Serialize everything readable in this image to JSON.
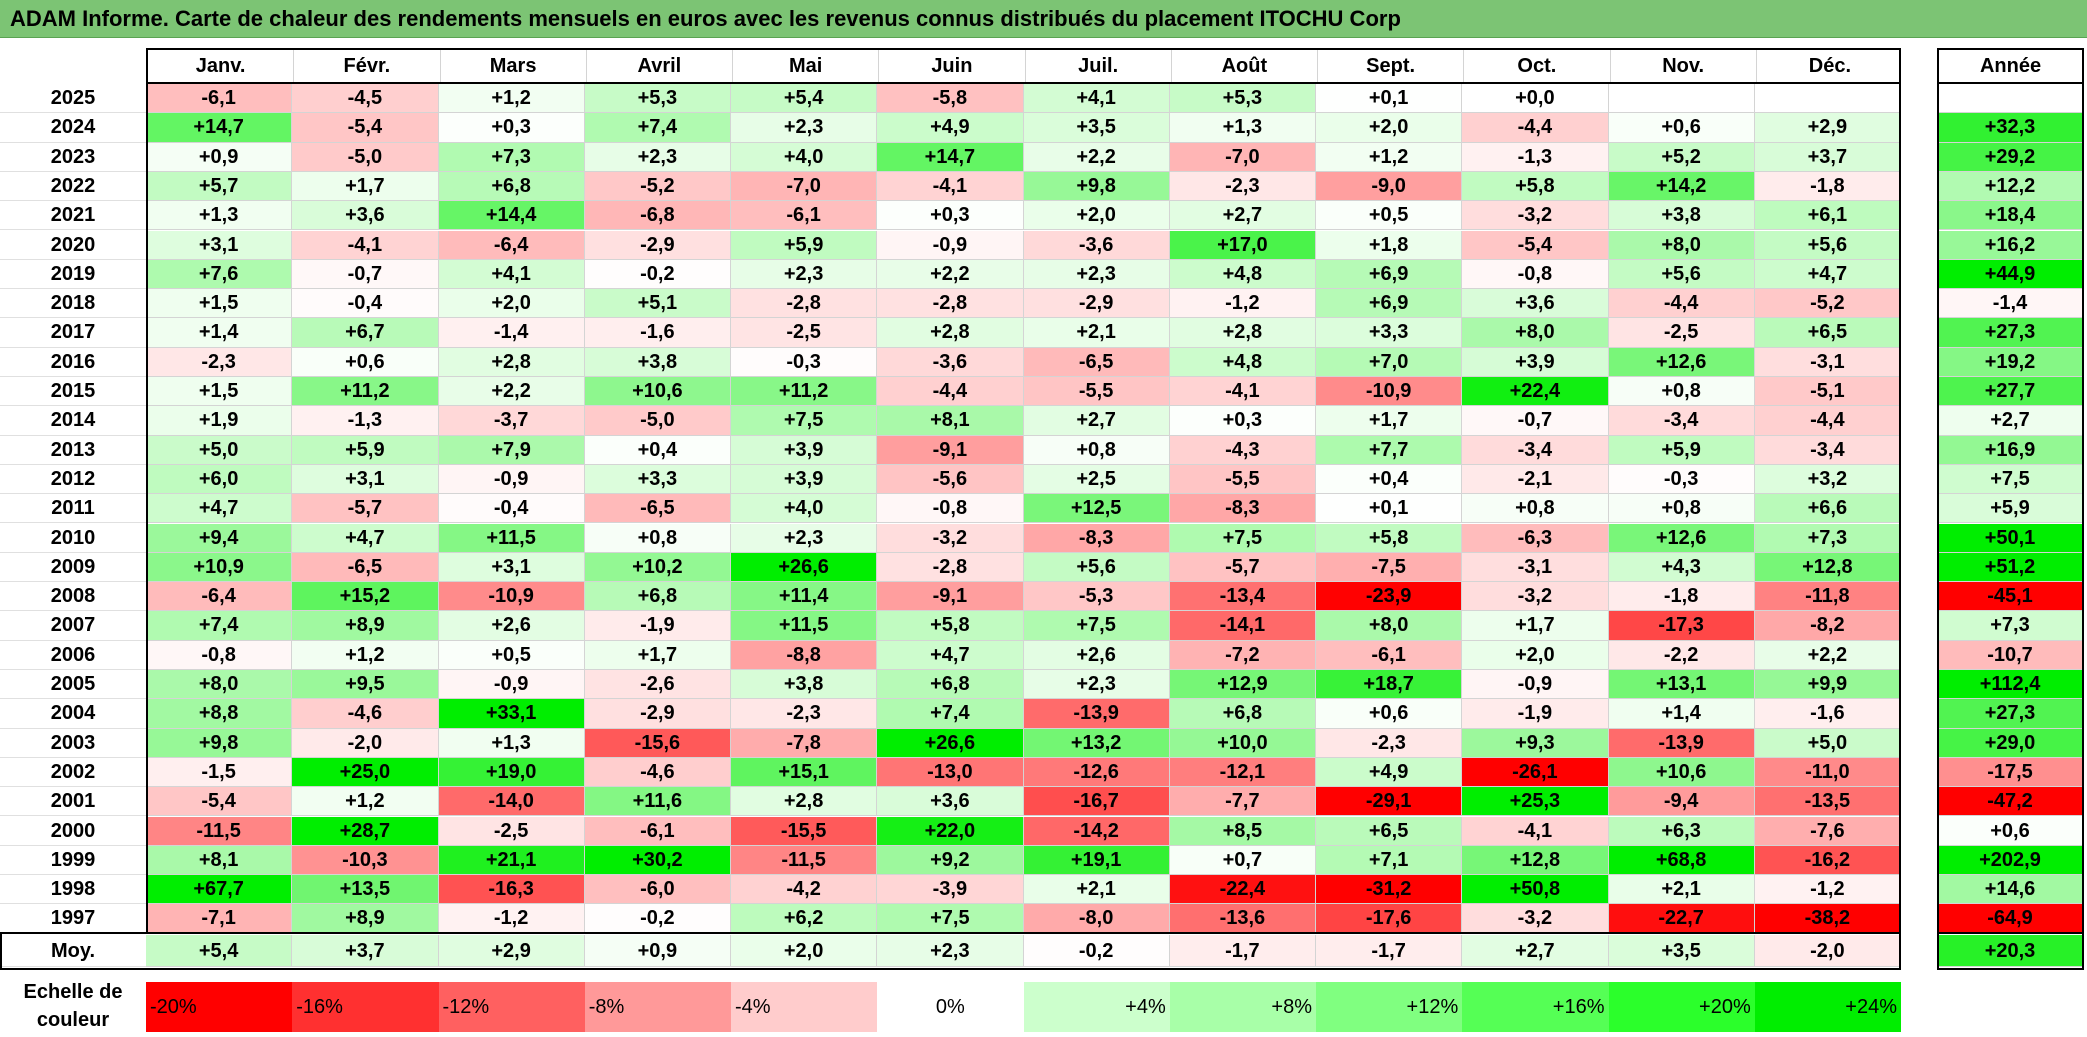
{
  "title": "ADAM Informe. Carte de chaleur des rendements mensuels en euros avec les revenus connus distribués du placement ITOCHU Corp",
  "chart_data": {
    "type": "heatmap",
    "title": "ADAM Informe. Carte de chaleur des rendements mensuels en euros avec les revenus connus distribués du placement ITOCHU Corp",
    "columns": [
      "Janv.",
      "Févr.",
      "Mars",
      "Avril",
      "Mai",
      "Juin",
      "Juil.",
      "Août",
      "Sept.",
      "Oct.",
      "Nov.",
      "Déc."
    ],
    "year_header": "Année",
    "rows": [
      {
        "year": "2025",
        "values": [
          "-6,1",
          "-4,5",
          "+1,2",
          "+5,3",
          "+5,4",
          "-5,8",
          "+4,1",
          "+5,3",
          "+0,1",
          "+0,0",
          "",
          ""
        ],
        "annual": ""
      },
      {
        "year": "2024",
        "values": [
          "+14,7",
          "-5,4",
          "+0,3",
          "+7,4",
          "+2,3",
          "+4,9",
          "+3,5",
          "+1,3",
          "+2,0",
          "-4,4",
          "+0,6",
          "+2,9"
        ],
        "annual": "+32,3"
      },
      {
        "year": "2023",
        "values": [
          "+0,9",
          "-5,0",
          "+7,3",
          "+2,3",
          "+4,0",
          "+14,7",
          "+2,2",
          "-7,0",
          "+1,2",
          "-1,3",
          "+5,2",
          "+3,7"
        ],
        "annual": "+29,2"
      },
      {
        "year": "2022",
        "values": [
          "+5,7",
          "+1,7",
          "+6,8",
          "-5,2",
          "-7,0",
          "-4,1",
          "+9,8",
          "-2,3",
          "-9,0",
          "+5,8",
          "+14,2",
          "-1,8"
        ],
        "annual": "+12,2"
      },
      {
        "year": "2021",
        "values": [
          "+1,3",
          "+3,6",
          "+14,4",
          "-6,8",
          "-6,1",
          "+0,3",
          "+2,0",
          "+2,7",
          "+0,5",
          "-3,2",
          "+3,8",
          "+6,1"
        ],
        "annual": "+18,4"
      },
      {
        "year": "2020",
        "values": [
          "+3,1",
          "-4,1",
          "-6,4",
          "-2,9",
          "+5,9",
          "-0,9",
          "-3,6",
          "+17,0",
          "+1,8",
          "-5,4",
          "+8,0",
          "+5,6"
        ],
        "annual": "+16,2"
      },
      {
        "year": "2019",
        "values": [
          "+7,6",
          "-0,7",
          "+4,1",
          "-0,2",
          "+2,3",
          "+2,2",
          "+2,3",
          "+4,8",
          "+6,9",
          "-0,8",
          "+5,6",
          "+4,7"
        ],
        "annual": "+44,9"
      },
      {
        "year": "2018",
        "values": [
          "+1,5",
          "-0,4",
          "+2,0",
          "+5,1",
          "-2,8",
          "-2,8",
          "-2,9",
          "-1,2",
          "+6,9",
          "+3,6",
          "-4,4",
          "-5,2"
        ],
        "annual": "-1,4"
      },
      {
        "year": "2017",
        "values": [
          "+1,4",
          "+6,7",
          "-1,4",
          "-1,6",
          "-2,5",
          "+2,8",
          "+2,1",
          "+2,8",
          "+3,3",
          "+8,0",
          "-2,5",
          "+6,5"
        ],
        "annual": "+27,3"
      },
      {
        "year": "2016",
        "values": [
          "-2,3",
          "+0,6",
          "+2,8",
          "+3,8",
          "-0,3",
          "-3,6",
          "-6,5",
          "+4,8",
          "+7,0",
          "+3,9",
          "+12,6",
          "-3,1"
        ],
        "annual": "+19,2"
      },
      {
        "year": "2015",
        "values": [
          "+1,5",
          "+11,2",
          "+2,2",
          "+10,6",
          "+11,2",
          "-4,4",
          "-5,5",
          "-4,1",
          "-10,9",
          "+22,4",
          "+0,8",
          "-5,1"
        ],
        "annual": "+27,7"
      },
      {
        "year": "2014",
        "values": [
          "+1,9",
          "-1,3",
          "-3,7",
          "-5,0",
          "+7,5",
          "+8,1",
          "+2,7",
          "+0,3",
          "+1,7",
          "-0,7",
          "-3,4",
          "-4,4"
        ],
        "annual": "+2,7"
      },
      {
        "year": "2013",
        "values": [
          "+5,0",
          "+5,9",
          "+7,9",
          "+0,4",
          "+3,9",
          "-9,1",
          "+0,8",
          "-4,3",
          "+7,7",
          "-3,4",
          "+5,9",
          "-3,4"
        ],
        "annual": "+16,9"
      },
      {
        "year": "2012",
        "values": [
          "+6,0",
          "+3,1",
          "-0,9",
          "+3,3",
          "+3,9",
          "-5,6",
          "+2,5",
          "-5,5",
          "+0,4",
          "-2,1",
          "-0,3",
          "+3,2"
        ],
        "annual": "+7,5"
      },
      {
        "year": "2011",
        "values": [
          "+4,7",
          "-5,7",
          "-0,4",
          "-6,5",
          "+4,0",
          "-0,8",
          "+12,5",
          "-8,3",
          "+0,1",
          "+0,8",
          "+0,8",
          "+6,6"
        ],
        "annual": "+5,9"
      },
      {
        "year": "2010",
        "values": [
          "+9,4",
          "+4,7",
          "+11,5",
          "+0,8",
          "+2,3",
          "-3,2",
          "-8,3",
          "+7,5",
          "+5,8",
          "-6,3",
          "+12,6",
          "+7,3"
        ],
        "annual": "+50,1"
      },
      {
        "year": "2009",
        "values": [
          "+10,9",
          "-6,5",
          "+3,1",
          "+10,2",
          "+26,6",
          "-2,8",
          "+5,6",
          "-5,7",
          "-7,5",
          "-3,1",
          "+4,3",
          "+12,8"
        ],
        "annual": "+51,2"
      },
      {
        "year": "2008",
        "values": [
          "-6,4",
          "+15,2",
          "-10,9",
          "+6,8",
          "+11,4",
          "-9,1",
          "-5,3",
          "-13,4",
          "-23,9",
          "-3,2",
          "-1,8",
          "-11,8"
        ],
        "annual": "-45,1"
      },
      {
        "year": "2007",
        "values": [
          "+7,4",
          "+8,9",
          "+2,6",
          "-1,9",
          "+11,5",
          "+5,8",
          "+7,5",
          "-14,1",
          "+8,0",
          "+1,7",
          "-17,3",
          "-8,2"
        ],
        "annual": "+7,3"
      },
      {
        "year": "2006",
        "values": [
          "-0,8",
          "+1,2",
          "+0,5",
          "+1,7",
          "-8,8",
          "+4,7",
          "+2,6",
          "-7,2",
          "-6,1",
          "+2,0",
          "-2,2",
          "+2,2"
        ],
        "annual": "-10,7"
      },
      {
        "year": "2005",
        "values": [
          "+8,0",
          "+9,5",
          "-0,9",
          "-2,6",
          "+3,8",
          "+6,8",
          "+2,3",
          "+12,9",
          "+18,7",
          "-0,9",
          "+13,1",
          "+9,9"
        ],
        "annual": "+112,4"
      },
      {
        "year": "2004",
        "values": [
          "+8,8",
          "-4,6",
          "+33,1",
          "-2,9",
          "-2,3",
          "+7,4",
          "-13,9",
          "+6,8",
          "+0,6",
          "-1,9",
          "+1,4",
          "-1,6"
        ],
        "annual": "+27,3"
      },
      {
        "year": "2003",
        "values": [
          "+9,8",
          "-2,0",
          "+1,3",
          "-15,6",
          "-7,8",
          "+26,6",
          "+13,2",
          "+10,0",
          "-2,3",
          "+9,3",
          "-13,9",
          "+5,0"
        ],
        "annual": "+29,0"
      },
      {
        "year": "2002",
        "values": [
          "-1,5",
          "+25,0",
          "+19,0",
          "-4,6",
          "+15,1",
          "-13,0",
          "-12,6",
          "-12,1",
          "+4,9",
          "-26,1",
          "+10,6",
          "-11,0"
        ],
        "annual": "-17,5"
      },
      {
        "year": "2001",
        "values": [
          "-5,4",
          "+1,2",
          "-14,0",
          "+11,6",
          "+2,8",
          "+3,6",
          "-16,7",
          "-7,7",
          "-29,1",
          "+25,3",
          "-9,4",
          "-13,5"
        ],
        "annual": "-47,2"
      },
      {
        "year": "2000",
        "values": [
          "-11,5",
          "+28,7",
          "-2,5",
          "-6,1",
          "-15,5",
          "+22,0",
          "-14,2",
          "+8,5",
          "+6,5",
          "-4,1",
          "+6,3",
          "-7,6"
        ],
        "annual": "+0,6"
      },
      {
        "year": "1999",
        "values": [
          "+8,1",
          "-10,3",
          "+21,1",
          "+30,2",
          "-11,5",
          "+9,2",
          "+19,1",
          "+0,7",
          "+7,1",
          "+12,8",
          "+68,8",
          "-16,2"
        ],
        "annual": "+202,9"
      },
      {
        "year": "1998",
        "values": [
          "+67,7",
          "+13,5",
          "-16,3",
          "-6,0",
          "-4,2",
          "-3,9",
          "+2,1",
          "-22,4",
          "-31,2",
          "+50,8",
          "+2,1",
          "-1,2"
        ],
        "annual": "+14,6"
      },
      {
        "year": "1997",
        "values": [
          "-7,1",
          "+8,9",
          "-1,2",
          "-0,2",
          "+6,2",
          "+7,5",
          "-8,0",
          "-13,6",
          "-17,6",
          "-3,2",
          "-22,7",
          "-38,2"
        ],
        "annual": "-64,9"
      }
    ],
    "average": {
      "label": "Moy.",
      "values": [
        "+5,4",
        "+3,7",
        "+2,9",
        "+0,9",
        "+2,0",
        "+2,3",
        "-0,2",
        "-1,7",
        "-1,7",
        "+2,7",
        "+3,5",
        "-2,0"
      ],
      "annual": "+20,3"
    },
    "scale": {
      "label": "Echelle de couleur",
      "steps": [
        {
          "text": "-20%",
          "value": -20,
          "color": "#ff0000"
        },
        {
          "text": "-16%",
          "value": -16,
          "color": "#ff3030"
        },
        {
          "text": "-12%",
          "value": -12,
          "color": "#ff6060"
        },
        {
          "text": "-8%",
          "value": -8,
          "color": "#ff9999"
        },
        {
          "text": "-4%",
          "value": -4,
          "color": "#ffcccc"
        },
        {
          "text": "0%",
          "value": 0,
          "color": "#ffffff"
        },
        {
          "text": "+4%",
          "value": 4,
          "color": "#ccffcc"
        },
        {
          "text": "+8%",
          "value": 8,
          "color": "#a8ffa8"
        },
        {
          "text": "+12%",
          "value": 12,
          "color": "#80ff80"
        },
        {
          "text": "+16%",
          "value": 16,
          "color": "#55ff55"
        },
        {
          "text": "+20%",
          "value": 20,
          "color": "#2bff2b"
        },
        {
          "text": "+24%",
          "value": 24,
          "color": "#00ee00"
        }
      ]
    },
    "colors": {
      "title_bar": "#7cc474",
      "negative_max": "#ff0000",
      "positive_max": "#00ee00",
      "neutral": "#ffffff"
    }
  }
}
